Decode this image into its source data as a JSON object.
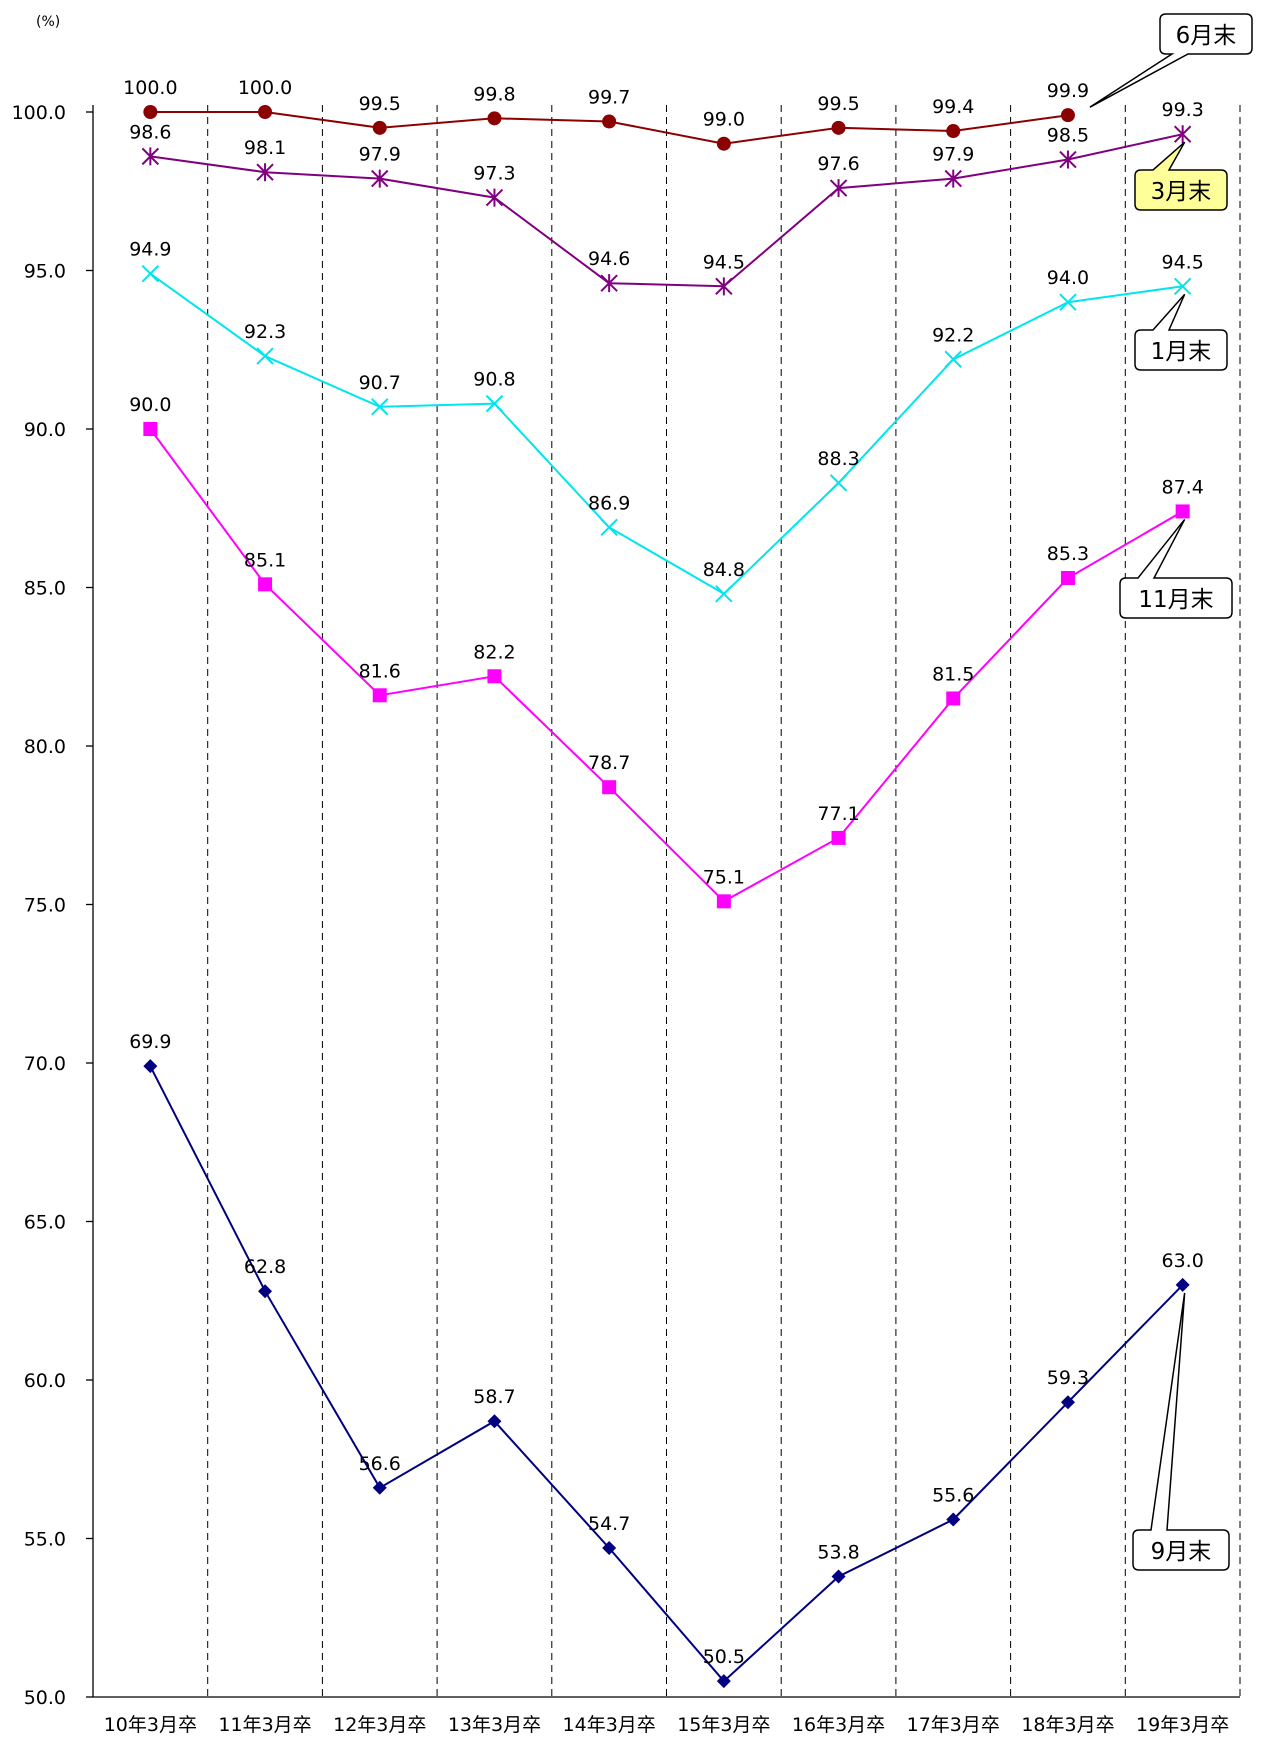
{
  "chart_data": {
    "type": "line",
    "unit_label": "(%)",
    "categories": [
      "10年3月卒",
      "11年3月卒",
      "12年3月卒",
      "13年3月卒",
      "14年3月卒",
      "15年3月卒",
      "16年3月卒",
      "17年3月卒",
      "18年3月卒",
      "19年3月卒"
    ],
    "ylim": [
      50.0,
      100.0
    ],
    "yticks": [
      "100.0",
      "95.0",
      "90.0",
      "85.0",
      "80.0",
      "75.0",
      "70.0",
      "65.0",
      "60.0",
      "55.0",
      "50.0"
    ],
    "grid": "vertical-dashed",
    "series": [
      {
        "name": "6月末",
        "color": "#8B0000",
        "marker": "circle",
        "values": [
          100.0,
          100.0,
          99.5,
          99.8,
          99.7,
          99.0,
          99.5,
          99.4,
          99.9,
          null
        ],
        "labels": [
          "100.0",
          "100.0",
          "99.5",
          "99.8",
          "99.7",
          "99.0",
          "99.5",
          "99.4",
          "99.9",
          null
        ]
      },
      {
        "name": "3月末",
        "color": "#800080",
        "marker": "asterisk",
        "values": [
          98.6,
          98.1,
          97.9,
          97.3,
          94.6,
          94.5,
          97.6,
          97.9,
          98.5,
          99.3
        ],
        "labels": [
          "98.6",
          "98.1",
          "97.9",
          "97.3",
          "94.6",
          "94.5",
          "97.6",
          "97.9",
          "98.5",
          "99.3"
        ]
      },
      {
        "name": "1月末",
        "color": "#00E5EE",
        "marker": "x",
        "values": [
          94.9,
          92.3,
          90.7,
          90.8,
          86.9,
          84.8,
          88.3,
          92.2,
          94.0,
          94.5
        ],
        "labels": [
          "94.9",
          "92.3",
          "90.7",
          "90.8",
          "86.9",
          "84.8",
          "88.3",
          "92.2",
          "94.0",
          "94.5"
        ]
      },
      {
        "name": "11月末",
        "color": "#FF00FF",
        "marker": "square",
        "values": [
          90.0,
          85.1,
          81.6,
          82.2,
          78.7,
          75.1,
          77.1,
          81.5,
          85.3,
          87.4
        ],
        "labels": [
          "90.0",
          "85.1",
          "81.6",
          "82.2",
          "78.7",
          "75.1",
          "77.1",
          "81.5",
          "85.3",
          "87.4"
        ]
      },
      {
        "name": "9月末",
        "color": "#000080",
        "marker": "diamond",
        "values": [
          69.9,
          62.8,
          56.6,
          58.7,
          54.7,
          50.5,
          53.8,
          55.6,
          59.3,
          63.0
        ],
        "labels": [
          "69.9",
          "62.8",
          "56.6",
          "58.7",
          "54.7",
          "50.5",
          "53.8",
          "55.6",
          "59.3",
          "63.0"
        ]
      }
    ],
    "callouts": [
      {
        "series": "6月末",
        "text": "6月末",
        "fill": "#ffffff"
      },
      {
        "series": "3月末",
        "text": "3月末",
        "fill": "#FFFF99"
      },
      {
        "series": "1月末",
        "text": "1月末",
        "fill": "#ffffff"
      },
      {
        "series": "11月末",
        "text": "11月末",
        "fill": "#ffffff"
      },
      {
        "series": "9月末",
        "text": "9月末",
        "fill": "#ffffff"
      }
    ]
  }
}
